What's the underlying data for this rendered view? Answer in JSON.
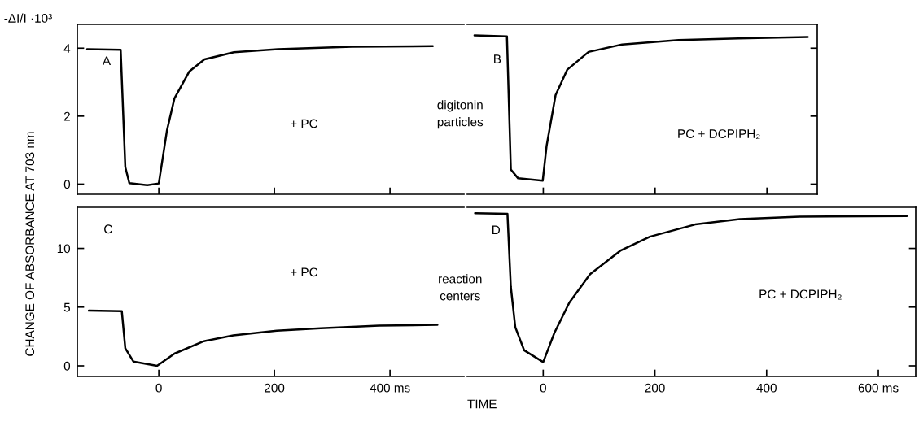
{
  "chart_data": [
    {
      "type": "line",
      "xlim": [
        -141,
        528
      ],
      "ylim": [
        -0.3,
        4.7
      ],
      "xticks": [
        0,
        200,
        400
      ],
      "yticks": [
        0,
        2,
        4
      ],
      "tick_labels": "y",
      "grid": false,
      "annotations": [
        "A",
        "+ PC",
        "digitonin\nparticles",
        "-ΔI/I ·10³"
      ],
      "x": [
        -124,
        -66,
        -58,
        -51,
        -20,
        0,
        14,
        27,
        53,
        79,
        130,
        206,
        334,
        474
      ],
      "series": [
        {
          "color": "#000000",
          "values": [
            3.97,
            3.95,
            0.5,
            0.03,
            -0.03,
            0.02,
            1.57,
            2.52,
            3.32,
            3.67,
            3.88,
            3.97,
            4.04,
            4.06
          ]
        }
      ]
    },
    {
      "type": "line",
      "xlim": [
        -136,
        490
      ],
      "ylim": [
        -0.3,
        4.7
      ],
      "xticks": [
        0,
        200,
        400
      ],
      "yticks": [
        0,
        2,
        4
      ],
      "tick_labels": false,
      "grid": false,
      "annotations": [
        "B",
        "PC + DCPIPH₂"
      ],
      "x": [
        -123,
        -65,
        -58,
        -45,
        -1,
        6,
        22,
        43,
        81,
        141,
        242,
        349,
        473
      ],
      "series": [
        {
          "color": "#000000",
          "values": [
            4.38,
            4.35,
            0.43,
            0.17,
            0.1,
            1.13,
            2.62,
            3.37,
            3.89,
            4.11,
            4.24,
            4.29,
            4.33
          ]
        }
      ]
    },
    {
      "type": "line",
      "xlim": [
        -141,
        528
      ],
      "ylim": [
        -0.9,
        13.5
      ],
      "xticks": [
        0,
        200,
        {
          "value": 400,
          "label": "400 ms"
        }
      ],
      "yticks": [
        0,
        5,
        10
      ],
      "grid": false,
      "ylabel": "CHANGE OF ABSORBANCE AT 703 nm",
      "annotations": [
        "C",
        "+ PC",
        "reaction\ncenters"
      ],
      "x": [
        -121,
        -64,
        -58,
        -44,
        -3,
        27,
        78,
        129,
        204,
        280,
        381,
        482
      ],
      "series": [
        {
          "color": "#000000",
          "values": [
            4.7,
            4.65,
            1.5,
            0.37,
            0.0,
            1.04,
            2.1,
            2.6,
            3.0,
            3.2,
            3.42,
            3.5
          ]
        }
      ]
    },
    {
      "type": "line",
      "xlim": [
        -136,
        667
      ],
      "ylim": [
        -0.9,
        13.5
      ],
      "xticks": [
        0,
        200,
        400,
        {
          "value": 600,
          "label": "600 ms"
        }
      ],
      "yticks": [
        0,
        5,
        10
      ],
      "tick_labels": "x",
      "grid": false,
      "xlabel": "TIME",
      "annotations": [
        "D",
        "PC + DCPIPH₂"
      ],
      "x": [
        -122,
        -64,
        -58,
        -50,
        -34,
        0,
        20,
        47,
        84,
        138,
        191,
        272,
        352,
        459,
        651
      ],
      "series": [
        {
          "color": "#000000",
          "values": [
            13.0,
            12.95,
            6.75,
            3.3,
            1.32,
            0.32,
            2.8,
            5.4,
            7.8,
            9.8,
            11.0,
            12.04,
            12.5,
            12.7,
            12.75
          ]
        }
      ]
    }
  ]
}
